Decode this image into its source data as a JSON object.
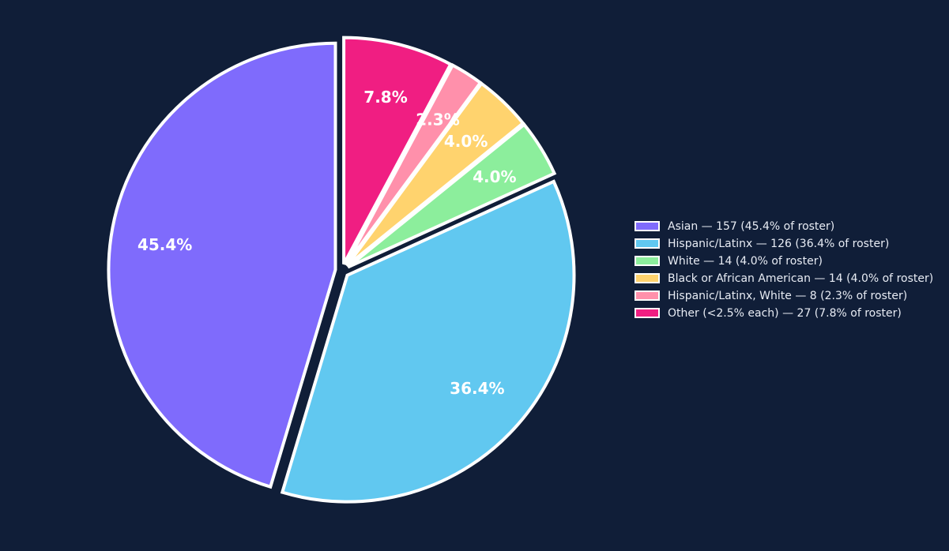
{
  "chart_data": {
    "type": "pie",
    "title": "",
    "start_angle_deg": 90,
    "direction": "counterclockwise",
    "legend_position": "right",
    "slices": [
      {
        "label": "Asian",
        "count": 157,
        "pct_label": "45.4%",
        "legend": "Asian — 157 (45.4% of roster)",
        "color": "#7f6bfc",
        "explode": 0.03
      },
      {
        "label": "Hispanic/Latinx",
        "count": 126,
        "pct_label": "36.4%",
        "legend": "Hispanic/Latinx — 126 (36.4% of roster)",
        "color": "#61c8f0",
        "explode": 0.03
      },
      {
        "label": "White",
        "count": 14,
        "pct_label": "4.0%",
        "legend": "White — 14 (4.0% of roster)",
        "color": "#8cee9c",
        "explode": 0.03
      },
      {
        "label": "Black or African American",
        "count": 14,
        "pct_label": "4.0%",
        "legend": "Black or African American — 14 (4.0% of roster)",
        "color": "#ffd36e",
        "explode": 0.03
      },
      {
        "label": "Hispanic/Latinx, White",
        "count": 8,
        "pct_label": "2.3%",
        "legend": "Hispanic/Latinx, White — 8 (2.3% of roster)",
        "color": "#ff90ab",
        "explode": 0.03
      },
      {
        "label": "Other (<2.5% each)",
        "count": 27,
        "pct_label": "7.8%",
        "legend": "Other (<2.5% each) — 27 (7.8% of roster)",
        "color": "#f01e82",
        "explode": 0.03
      }
    ]
  }
}
